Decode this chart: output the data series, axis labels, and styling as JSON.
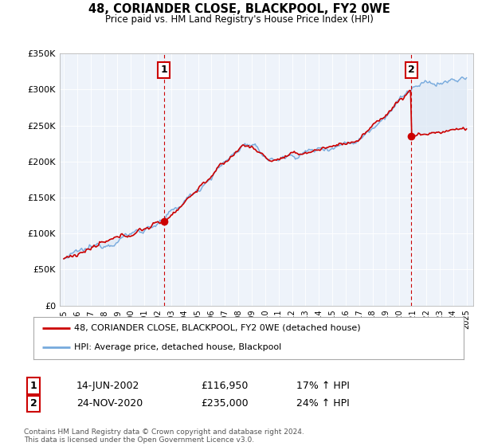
{
  "title": "48, CORIANDER CLOSE, BLACKPOOL, FY2 0WE",
  "subtitle": "Price paid vs. HM Land Registry's House Price Index (HPI)",
  "legend_line1": "48, CORIANDER CLOSE, BLACKPOOL, FY2 0WE (detached house)",
  "legend_line2": "HPI: Average price, detached house, Blackpool",
  "sale1_date": "14-JUN-2002",
  "sale1_price": "£116,950",
  "sale1_hpi": "17% ↑ HPI",
  "sale1_year": 2002.45,
  "sale1_value": 116950,
  "sale2_date": "24-NOV-2020",
  "sale2_price": "£235,000",
  "sale2_hpi": "24% ↑ HPI",
  "sale2_year": 2020.9,
  "sale2_value": 235000,
  "ylim": [
    0,
    350000
  ],
  "yticks": [
    0,
    50000,
    100000,
    150000,
    200000,
    250000,
    300000,
    350000
  ],
  "ytick_labels": [
    "£0",
    "£50K",
    "£100K",
    "£150K",
    "£200K",
    "£250K",
    "£300K",
    "£350K"
  ],
  "xlim_start": 1994.7,
  "xlim_end": 2025.5,
  "property_color": "#cc0000",
  "hpi_color": "#77aadd",
  "fill_color": "#dde8f5",
  "vline_color": "#cc0000",
  "background_color": "#ffffff",
  "chart_bg_color": "#eef3fa",
  "grid_color": "#ffffff",
  "copyright_text": "Contains HM Land Registry data © Crown copyright and database right 2024.\nThis data is licensed under the Open Government Licence v3.0."
}
